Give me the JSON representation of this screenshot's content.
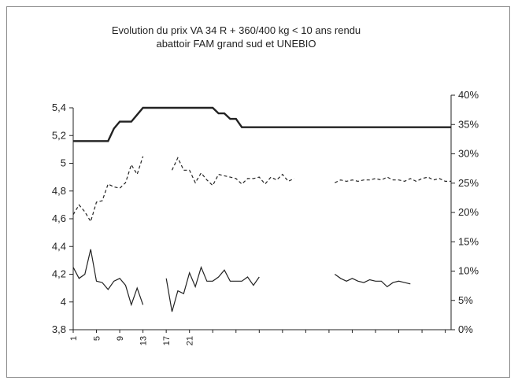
{
  "chart_data": {
    "type": "line",
    "title": "Evolution  du prix VA 34 R + 360/400 kg < 10 ans rendu\nabattoir FAM grand sud et UNEBIO",
    "x": [
      1,
      2,
      3,
      4,
      5,
      6,
      7,
      8,
      9,
      10,
      11,
      12,
      13,
      14,
      15,
      16,
      17,
      18,
      19,
      20,
      21,
      22,
      23,
      24,
      25,
      26,
      27,
      28,
      29,
      30,
      31,
      32,
      33,
      34,
      35,
      36,
      37,
      38,
      39,
      40,
      41,
      42,
      43,
      44,
      45,
      46,
      47,
      48,
      49,
      50,
      51,
      52,
      53,
      54,
      55,
      56,
      57,
      58,
      59,
      60,
      61,
      62,
      63,
      64,
      65,
      66
    ],
    "x_tick_labels": [
      "1",
      "5",
      "9",
      "13",
      "17",
      "21"
    ],
    "x_tick_positions": [
      1,
      5,
      9,
      13,
      17,
      21
    ],
    "y_left": {
      "ticks": [
        "3,8",
        "4",
        "4,2",
        "4,4",
        "4,6",
        "4,8",
        "5",
        "5,2",
        "5,4"
      ],
      "range": [
        3.8,
        5.4
      ]
    },
    "y_right": {
      "ticks": [
        "0%",
        "5%",
        "10%",
        "15%",
        "20%",
        "25%",
        "30%",
        "35%",
        "40%"
      ],
      "range": [
        0,
        40
      ]
    },
    "series": [
      {
        "axis": "left",
        "style": "thick-solid",
        "values": [
          5.16,
          5.16,
          5.16,
          5.16,
          5.16,
          5.16,
          5.16,
          5.25,
          5.3,
          5.3,
          5.3,
          5.35,
          5.4,
          5.4,
          5.4,
          5.4,
          5.4,
          5.4,
          5.4,
          5.4,
          5.4,
          5.4,
          5.4,
          5.4,
          5.4,
          5.36,
          5.36,
          5.32,
          5.32,
          5.26,
          5.26,
          5.26,
          5.26,
          5.26,
          5.26,
          5.26,
          5.26,
          5.26,
          5.26,
          5.26,
          5.26,
          5.26,
          5.26,
          5.26,
          5.26,
          5.26,
          5.26,
          5.26,
          5.26,
          5.26,
          5.26,
          5.26,
          5.26,
          5.26,
          5.26,
          5.26,
          5.26,
          5.26,
          5.26,
          5.26,
          5.26,
          5.26,
          5.26,
          5.26,
          5.26,
          5.26
        ]
      },
      {
        "axis": "left",
        "style": "dashed",
        "values": [
          4.63,
          4.7,
          4.65,
          4.58,
          4.72,
          4.73,
          4.85,
          4.83,
          4.82,
          4.86,
          4.99,
          4.92,
          5.05,
          null,
          null,
          null,
          null,
          4.95,
          5.04,
          4.95,
          4.95,
          4.86,
          4.93,
          4.88,
          4.84,
          4.92,
          4.91,
          4.9,
          4.89,
          4.85,
          4.89,
          4.89,
          4.9,
          4.85,
          4.9,
          4.88,
          4.92,
          4.87,
          4.89,
          null,
          null,
          null,
          null,
          null,
          null,
          4.86,
          4.88,
          4.87,
          4.88,
          4.87,
          4.88,
          4.88,
          4.89,
          4.88,
          4.9,
          4.88,
          4.88,
          4.87,
          4.89,
          4.87,
          4.89,
          4.9,
          4.88,
          4.89,
          4.87,
          4.87
        ]
      },
      {
        "axis": "left",
        "style": "solid",
        "values": [
          4.25,
          4.17,
          4.2,
          4.38,
          4.15,
          4.14,
          4.09,
          4.15,
          4.17,
          4.12,
          3.98,
          4.1,
          3.98,
          null,
          null,
          null,
          4.17,
          3.93,
          4.08,
          4.06,
          4.21,
          4.11,
          4.25,
          4.15,
          4.15,
          4.18,
          4.23,
          4.15,
          4.15,
          4.15,
          4.18,
          4.12,
          4.18,
          null,
          null,
          null,
          null,
          null,
          null,
          null,
          null,
          null,
          null,
          null,
          null,
          4.2,
          4.17,
          4.15,
          4.17,
          4.15,
          4.14,
          4.16,
          4.15,
          4.15,
          4.11,
          4.14,
          4.15,
          4.14,
          4.13,
          null,
          null,
          null,
          null,
          null,
          null,
          null
        ]
      }
    ],
    "grid": false,
    "legend": "none"
  }
}
